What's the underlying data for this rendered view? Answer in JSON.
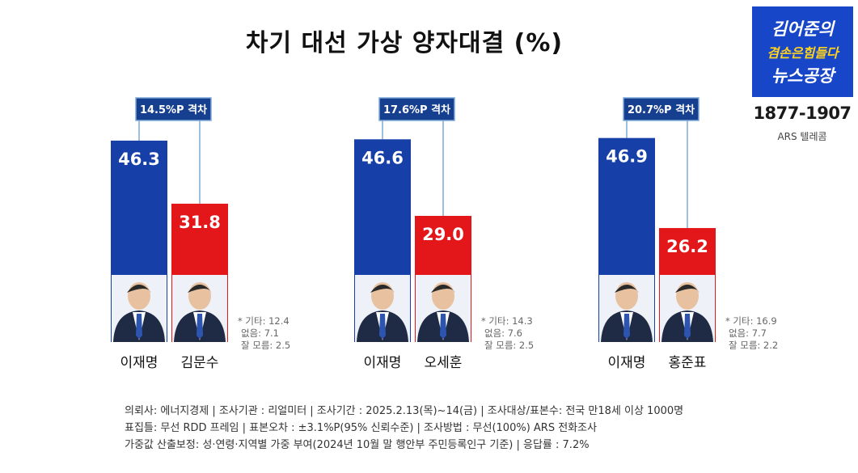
{
  "title": "차기 대선 가상 양자대결 (%)",
  "logo": {
    "line1": "김어준의",
    "line2": "겸손은힘들다",
    "line3": "뉴스공장",
    "years": "1877-1907",
    "method": "ARS 텔레콤"
  },
  "colors": {
    "blue": "#163fa8",
    "red": "#e3161a",
    "connector": "#7fa8d8",
    "gap_box": "#173f90"
  },
  "chart_data": [
    {
      "type": "bar",
      "gap_label": "14.5%P 격차",
      "categories": [
        "이재명",
        "김문수"
      ],
      "values": [
        46.3,
        31.8
      ],
      "value_labels": [
        "46.3",
        "31.8"
      ],
      "others": [
        "* 기타: 12.4",
        "없음: 7.1",
        "잘 모름: 2.5"
      ]
    },
    {
      "type": "bar",
      "gap_label": "17.6%P 격차",
      "categories": [
        "이재명",
        "오세훈"
      ],
      "values": [
        46.6,
        29.0
      ],
      "value_labels": [
        "46.6",
        "29.0"
      ],
      "others": [
        "* 기타: 14.3",
        "없음: 7.6",
        "잘 모름: 2.5"
      ]
    },
    {
      "type": "bar",
      "gap_label": "20.7%P 격차",
      "categories": [
        "이재명",
        "홍준표"
      ],
      "values": [
        46.9,
        26.2
      ],
      "value_labels": [
        "46.9",
        "26.2"
      ],
      "others": [
        "* 기타: 16.9",
        "없음: 7.7",
        "잘 모름: 2.2"
      ]
    }
  ],
  "notes": [
    "의뢰사: 에너지경제 | 조사기관 : 리얼미터 | 조사기간 : 2025.2.13(목)~14(금) | 조사대상/표본수: 전국 만18세 이상 1000명",
    "표집틀: 무선 RDD 프레임 | 표본오차 : ±3.1%P(95% 신뢰수준) | 조사방법 : 무선(100%) ARS 전화조사",
    "가중값 산출보정: 성·연령·지역별 가중 부여(2024년 10월 말 행안부 주민등록인구 기준) | 응답률 : 7.2%"
  ]
}
